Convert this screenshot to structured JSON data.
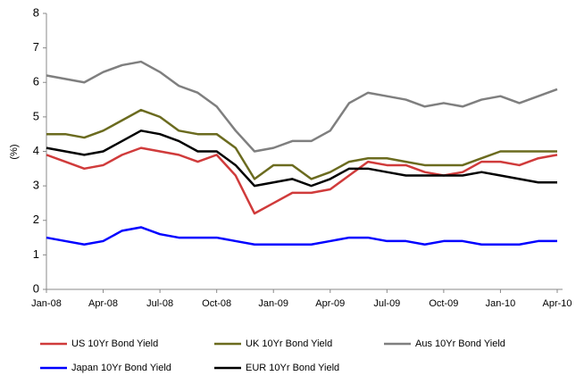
{
  "chart_data": {
    "type": "line",
    "y_label": "(%)",
    "categories": [
      "Jan-08",
      null,
      null,
      "Apr-08",
      null,
      null,
      "Jul-08",
      null,
      null,
      "Oct-08",
      null,
      null,
      "Jan-09",
      null,
      null,
      "Apr-09",
      null,
      null,
      "Jul-09",
      null,
      null,
      "Oct-09",
      null,
      null,
      "Jan-10",
      null,
      null,
      "Apr-10"
    ],
    "series": [
      {
        "name": "US 10Yr Bond Yield",
        "color": "#d03b3b",
        "values": [
          3.9,
          3.7,
          3.5,
          3.6,
          3.9,
          4.1,
          4.0,
          3.9,
          3.7,
          3.9,
          3.3,
          2.2,
          2.5,
          2.8,
          2.8,
          2.9,
          3.3,
          3.7,
          3.6,
          3.6,
          3.4,
          3.3,
          3.4,
          3.7,
          3.7,
          3.6,
          3.8,
          3.9
        ]
      },
      {
        "name": "UK 10Yr Bond Yield",
        "color": "#6b6b1f",
        "values": [
          4.5,
          4.5,
          4.4,
          4.6,
          4.9,
          5.2,
          5.0,
          4.6,
          4.5,
          4.5,
          4.1,
          3.2,
          3.6,
          3.6,
          3.2,
          3.4,
          3.7,
          3.8,
          3.8,
          3.7,
          3.6,
          3.6,
          3.6,
          3.8,
          4.0,
          4.0,
          4.0,
          4.0
        ]
      },
      {
        "name": "Aus 10Yr Bond Yield",
        "color": "#7f7f7f",
        "values": [
          6.2,
          6.1,
          6.0,
          6.3,
          6.5,
          6.6,
          6.3,
          5.9,
          5.7,
          5.3,
          4.6,
          4.0,
          4.1,
          4.3,
          4.3,
          4.6,
          5.4,
          5.7,
          5.6,
          5.5,
          5.3,
          5.4,
          5.3,
          5.5,
          5.6,
          5.4,
          5.6,
          5.8
        ]
      },
      {
        "name": "Japan 10Yr Bond Yield",
        "color": "#0000ff",
        "values": [
          1.5,
          1.4,
          1.3,
          1.4,
          1.7,
          1.8,
          1.6,
          1.5,
          1.5,
          1.5,
          1.4,
          1.3,
          1.3,
          1.3,
          1.3,
          1.4,
          1.5,
          1.5,
          1.4,
          1.4,
          1.3,
          1.4,
          1.4,
          1.3,
          1.3,
          1.3,
          1.4,
          1.4
        ]
      },
      {
        "name": "EUR 10Yr Bond Yield",
        "color": "#000000",
        "values": [
          4.1,
          4.0,
          3.9,
          4.0,
          4.3,
          4.6,
          4.5,
          4.3,
          4.0,
          4.0,
          3.6,
          3.0,
          3.1,
          3.2,
          3.0,
          3.2,
          3.5,
          3.5,
          3.4,
          3.3,
          3.3,
          3.3,
          3.3,
          3.4,
          3.3,
          3.2,
          3.1,
          3.1
        ]
      }
    ],
    "ylim": [
      0,
      8
    ],
    "yticks": [
      0,
      1,
      2,
      3,
      4,
      5,
      6,
      7,
      8
    ],
    "grid": false
  }
}
